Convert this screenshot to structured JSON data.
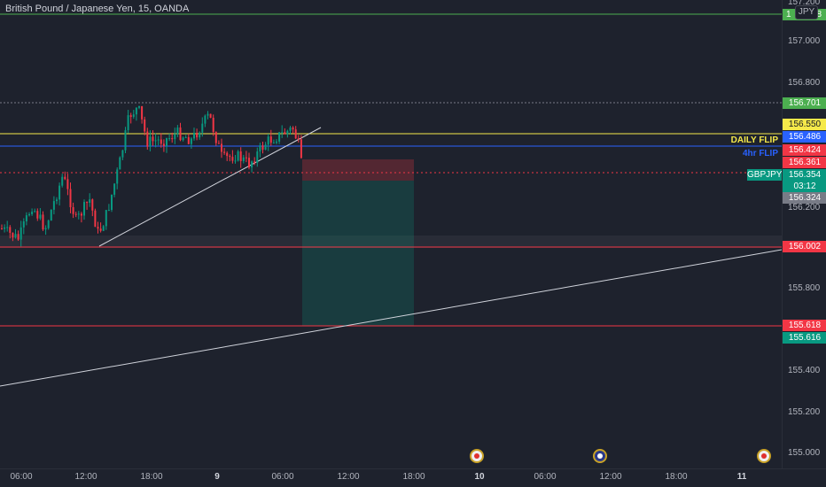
{
  "header": {
    "title": "British Pound / Japanese Yen, 15, OANDA",
    "currency_button": "JPY"
  },
  "price_axis": {
    "labels": [
      "157.200",
      "157.000",
      "156.800",
      "156.200",
      "155.800",
      "155.400",
      "155.200",
      "155.000"
    ],
    "tags": {
      "top_green": "1",
      "top_green_suffix": "8",
      "p156701": "156.701",
      "p156550": "156.550",
      "p156486": "156.486",
      "p156424": "156.424",
      "p156361": "156.361",
      "current": "156.354",
      "countdown": "03:12",
      "p156324": "156.324",
      "p156002": "156.002",
      "p155618": "155.618",
      "p155616": "155.616"
    }
  },
  "line_labels": {
    "daily_flip": "DAILY FLIP",
    "four_hr_flip": "4hr FLIP",
    "symbol": "GBPJPY"
  },
  "time_axis": [
    "06:00",
    "12:00",
    "18:00",
    "9",
    "06:00",
    "12:00",
    "18:00",
    "10",
    "06:00",
    "12:00",
    "18:00",
    "11"
  ],
  "colors": {
    "up": "#089981",
    "down": "#f23645",
    "daily_flip": "#f5e94a",
    "four_hr_flip": "#2962ff",
    "background": "#1e222d"
  },
  "icons": [
    "economic-event-icon",
    "uk-flag-event-icon",
    "economic-event-icon"
  ]
}
